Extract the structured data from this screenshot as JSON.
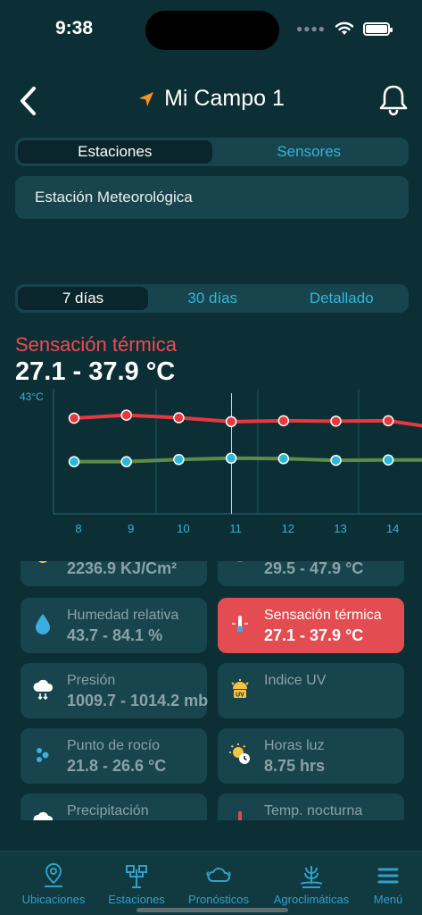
{
  "status": {
    "time": "9:38"
  },
  "header": {
    "title": "Mi Campo 1"
  },
  "tabs_source": {
    "items": [
      "Estaciones",
      "Sensores"
    ],
    "selected": "Estaciones"
  },
  "station": {
    "name": "Estación Meteorológica"
  },
  "tabs_range": {
    "items": [
      "7 días",
      "30 días",
      "Detallado"
    ],
    "selected": "7 días"
  },
  "metric": {
    "title": "Sensación térmica",
    "value": "27.1 - 37.9 °C"
  },
  "colors": {
    "accent": "#32b5d8",
    "metric_red": "#f14a50",
    "max_line": "#e8373f",
    "min_line": "#5e8c48",
    "point_fill": "#2bb8d6"
  },
  "chart_data": {
    "type": "line",
    "x": [
      "8",
      "9",
      "10",
      "11",
      "12",
      "13",
      "14"
    ],
    "y_tick_label": "43°C",
    "series": [
      {
        "values": [
          37.2,
          37.9,
          37.3,
          36.4,
          36.6,
          36.5,
          36.6
        ]
      },
      {
        "values": [
          27.1,
          27.1,
          27.6,
          27.9,
          27.8,
          27.4,
          27.5
        ]
      }
    ],
    "ylim": [
      15,
      43
    ]
  },
  "cards": {
    "partial_left": {
      "value": "2236.9 KJ/Cm²"
    },
    "partial_right": {
      "value": "29.5 -  47.9 °C"
    },
    "humidity": {
      "label": "Humedad relativa",
      "value": "43.7 -  84.1 %"
    },
    "thermal": {
      "label": "Sensación térmica",
      "value": "27.1 -  37.9 °C"
    },
    "pressure": {
      "label": "Presión",
      "value": "1009.7 -  1014.2 mb"
    },
    "uv": {
      "label": "Indice UV",
      "value": ""
    },
    "dew": {
      "label": "Punto de rocío",
      "value": "21.8 -  26.6 °C"
    },
    "light": {
      "label": "Horas luz",
      "value": " 8.75 hrs"
    },
    "precip": {
      "label": "Precipitación"
    },
    "night": {
      "label": "Temp. nocturna"
    }
  },
  "nav": {
    "locations": "Ubicaciones",
    "stations": "Estaciones",
    "forecasts": "Pronósticos",
    "agro": "Agroclimáticas",
    "menu": "Menú"
  }
}
